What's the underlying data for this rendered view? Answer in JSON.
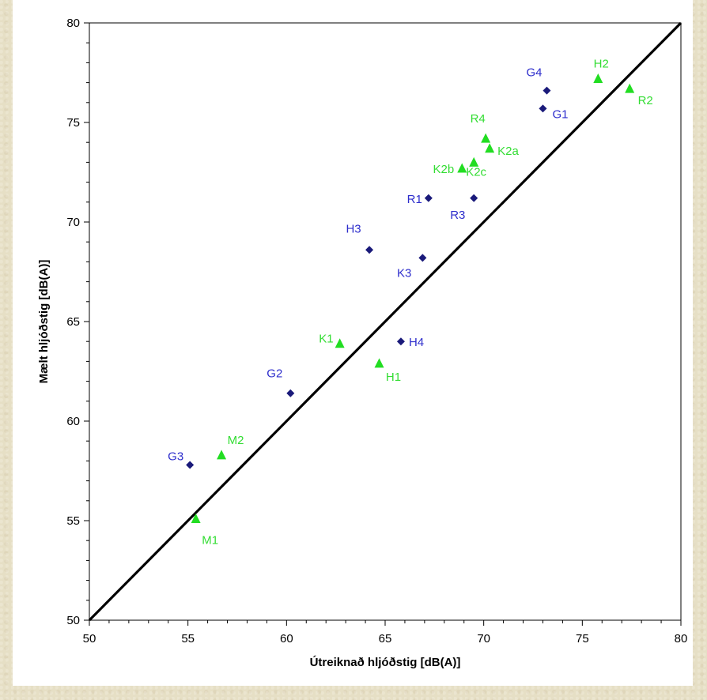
{
  "chart_data": {
    "type": "scatter",
    "xlabel": "Útreiknað hljóðstig [dB(A)]",
    "ylabel": "Mælt hljóðstig [dB(A)]",
    "xlim": [
      50,
      80
    ],
    "ylim": [
      50,
      80
    ],
    "x_ticks": [
      "50",
      "55",
      "60",
      "65",
      "70",
      "75",
      "80"
    ],
    "y_ticks": [
      "50",
      "55",
      "60",
      "65",
      "70",
      "75",
      "80"
    ],
    "grid": false,
    "reference_line": {
      "from": [
        50,
        50
      ],
      "to": [
        80,
        80
      ]
    },
    "series": [
      {
        "marker": "diamond",
        "color": "#1a1a7a",
        "label_color": "#2e2ecc",
        "points": [
          {
            "label": "G4",
            "x": 73.2,
            "y": 76.6
          },
          {
            "label": "G1",
            "x": 73.0,
            "y": 75.7
          },
          {
            "label": "R1",
            "x": 67.2,
            "y": 71.2
          },
          {
            "label": "R3",
            "x": 69.5,
            "y": 71.2
          },
          {
            "label": "H3",
            "x": 64.2,
            "y": 68.6
          },
          {
            "label": "K3",
            "x": 66.9,
            "y": 68.2
          },
          {
            "label": "H4",
            "x": 65.8,
            "y": 64.0
          },
          {
            "label": "G2",
            "x": 60.2,
            "y": 61.4
          },
          {
            "label": "G3",
            "x": 55.1,
            "y": 57.8
          }
        ]
      },
      {
        "marker": "triangle",
        "color": "#22dd22",
        "label_color": "#33dd33",
        "points": [
          {
            "label": "H2",
            "x": 75.8,
            "y": 77.2
          },
          {
            "label": "R2",
            "x": 77.4,
            "y": 76.7
          },
          {
            "label": "R4",
            "x": 70.1,
            "y": 74.2
          },
          {
            "label": "K2a",
            "x": 70.3,
            "y": 73.7
          },
          {
            "label": "K2b",
            "x": 68.9,
            "y": 72.7
          },
          {
            "label": "K2c",
            "x": 69.5,
            "y": 73.0
          },
          {
            "label": "K1",
            "x": 62.7,
            "y": 63.9
          },
          {
            "label": "H1",
            "x": 64.7,
            "y": 62.9
          },
          {
            "label": "M2",
            "x": 56.7,
            "y": 58.3
          },
          {
            "label": "M1",
            "x": 55.4,
            "y": 55.1
          }
        ]
      }
    ]
  }
}
